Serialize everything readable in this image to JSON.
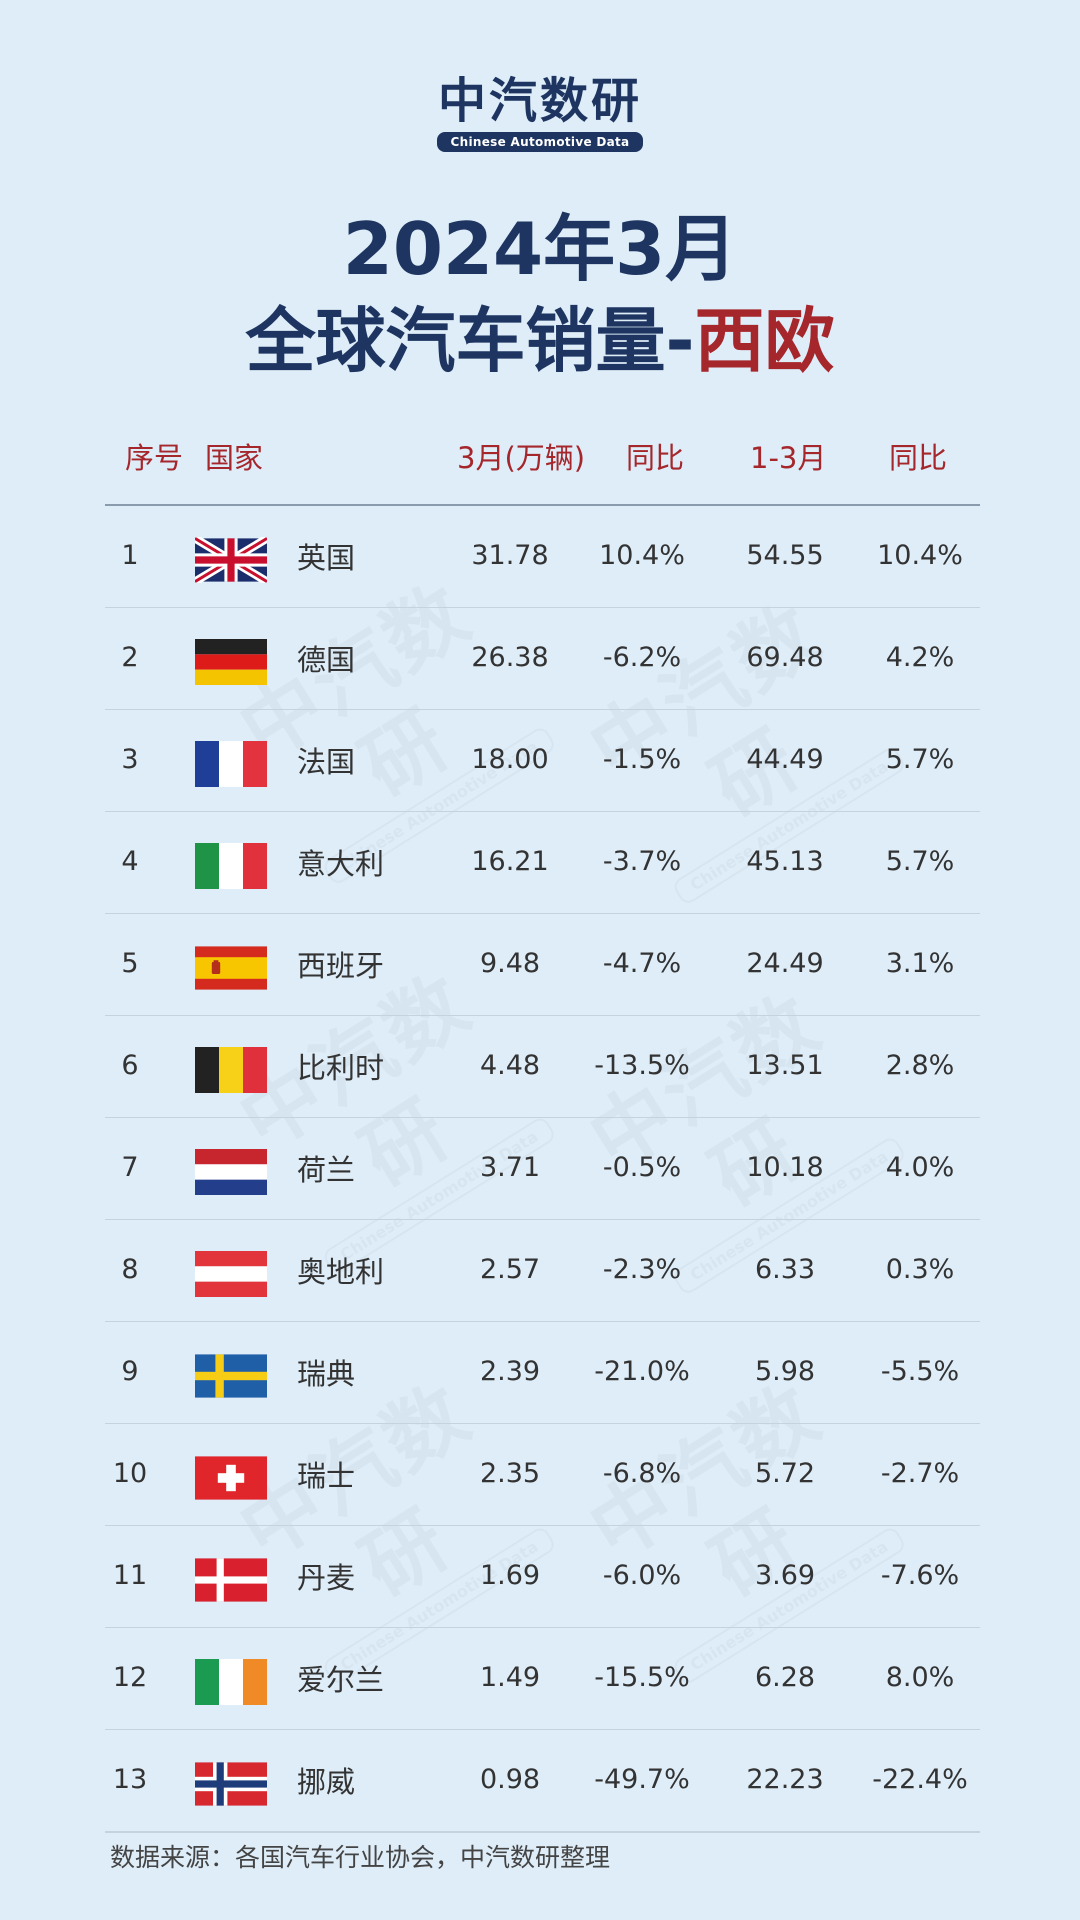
{
  "logo": {
    "cn": "中汽数研",
    "en": "Chinese Automotive Data"
  },
  "title": {
    "line1": "2024年3月",
    "line2_main": "全球汽车销量-",
    "line2_accent": "西欧"
  },
  "colors": {
    "navy": "#1d3560",
    "accent_red": "#a5262b",
    "background": "#deedf8"
  },
  "table": {
    "headers": {
      "rank": "序号",
      "country": "国家",
      "march": "3月(万辆)",
      "yoy1": "同比",
      "q1": "1-3月",
      "yoy2": "同比"
    },
    "rows": [
      {
        "rank": "1",
        "flag": "uk-flag-icon",
        "country": "英国",
        "march": "31.78",
        "yoy1": "10.4%",
        "q1": "54.55",
        "yoy2": "10.4%"
      },
      {
        "rank": "2",
        "flag": "germany-flag-icon",
        "country": "德国",
        "march": "26.38",
        "yoy1": "-6.2%",
        "q1": "69.48",
        "yoy2": "4.2%"
      },
      {
        "rank": "3",
        "flag": "france-flag-icon",
        "country": "法国",
        "march": "18.00",
        "yoy1": "-1.5%",
        "q1": "44.49",
        "yoy2": "5.7%"
      },
      {
        "rank": "4",
        "flag": "italy-flag-icon",
        "country": "意大利",
        "march": "16.21",
        "yoy1": "-3.7%",
        "q1": "45.13",
        "yoy2": "5.7%"
      },
      {
        "rank": "5",
        "flag": "spain-flag-icon",
        "country": "西班牙",
        "march": "9.48",
        "yoy1": "-4.7%",
        "q1": "24.49",
        "yoy2": "3.1%"
      },
      {
        "rank": "6",
        "flag": "belgium-flag-icon",
        "country": "比利时",
        "march": "4.48",
        "yoy1": "-13.5%",
        "q1": "13.51",
        "yoy2": "2.8%"
      },
      {
        "rank": "7",
        "flag": "netherlands-flag-icon",
        "country": "荷兰",
        "march": "3.71",
        "yoy1": "-0.5%",
        "q1": "10.18",
        "yoy2": "4.0%"
      },
      {
        "rank": "8",
        "flag": "austria-flag-icon",
        "country": "奥地利",
        "march": "2.57",
        "yoy1": "-2.3%",
        "q1": "6.33",
        "yoy2": "0.3%"
      },
      {
        "rank": "9",
        "flag": "sweden-flag-icon",
        "country": "瑞典",
        "march": "2.39",
        "yoy1": "-21.0%",
        "q1": "5.98",
        "yoy2": "-5.5%"
      },
      {
        "rank": "10",
        "flag": "switzerland-flag-icon",
        "country": "瑞士",
        "march": "2.35",
        "yoy1": "-6.8%",
        "q1": "5.72",
        "yoy2": "-2.7%"
      },
      {
        "rank": "11",
        "flag": "denmark-flag-icon",
        "country": "丹麦",
        "march": "1.69",
        "yoy1": "-6.0%",
        "q1": "3.69",
        "yoy2": "-7.6%"
      },
      {
        "rank": "12",
        "flag": "ireland-flag-icon",
        "country": "爱尔兰",
        "march": "1.49",
        "yoy1": "-15.5%",
        "q1": "6.28",
        "yoy2": "8.0%"
      },
      {
        "rank": "13",
        "flag": "norway-flag-icon",
        "country": "挪威",
        "march": "0.98",
        "yoy1": "-49.7%",
        "q1": "22.23",
        "yoy2": "-22.4%"
      }
    ]
  },
  "source": "数据来源：各国汽车行业协会，中汽数研整理"
}
